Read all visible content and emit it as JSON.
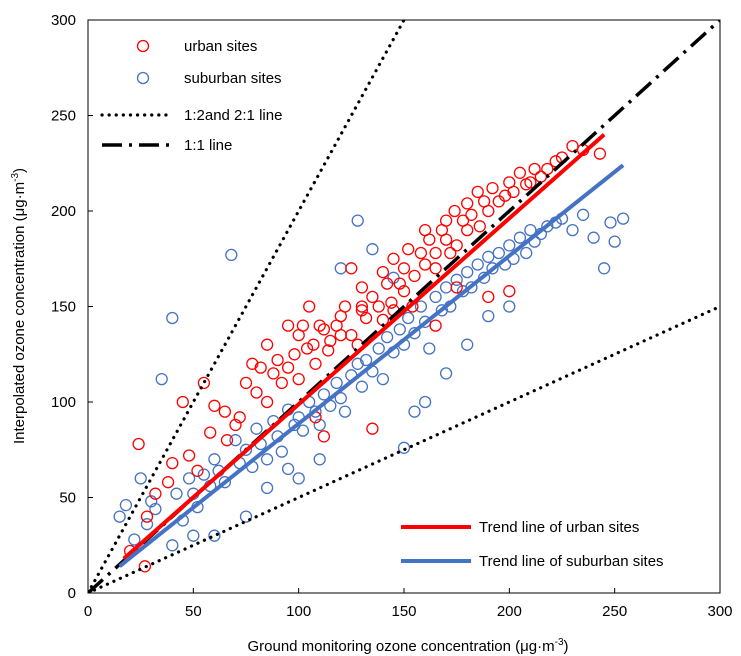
{
  "chart_data": {
    "type": "scatter",
    "xlabel": "Ground monitoring ozone concentration (μg·m",
    "xlabel_sup": "-3",
    "xlabel_tail": ")",
    "ylabel": "Interpolated ozone concentration (μg·m",
    "ylabel_sup": "-3",
    "ylabel_tail": ")",
    "xlim": [
      0,
      300
    ],
    "ylim": [
      0,
      300
    ],
    "xticks": [
      "0",
      "50",
      "100",
      "150",
      "200",
      "250",
      "300"
    ],
    "yticks": [
      "0",
      "50",
      "100",
      "150",
      "200",
      "250",
      "300"
    ],
    "grid": false,
    "series": [
      {
        "name": "urban sites",
        "color": "#ff0000",
        "marker": "open-circle",
        "sample_points": [
          [
            20,
            22
          ],
          [
            24,
            78
          ],
          [
            27,
            14
          ],
          [
            28,
            40
          ],
          [
            32,
            52
          ],
          [
            38,
            58
          ],
          [
            40,
            68
          ],
          [
            45,
            100
          ],
          [
            48,
            72
          ],
          [
            52,
            64
          ],
          [
            55,
            110
          ],
          [
            58,
            84
          ],
          [
            60,
            98
          ],
          [
            65,
            95
          ],
          [
            66,
            80
          ],
          [
            70,
            88
          ],
          [
            72,
            92
          ],
          [
            75,
            110
          ],
          [
            78,
            120
          ],
          [
            80,
            105
          ],
          [
            82,
            118
          ],
          [
            85,
            100
          ],
          [
            88,
            115
          ],
          [
            90,
            122
          ],
          [
            92,
            110
          ],
          [
            95,
            118
          ],
          [
            98,
            125
          ],
          [
            100,
            112
          ],
          [
            100,
            135
          ],
          [
            102,
            140
          ],
          [
            104,
            128
          ],
          [
            107,
            130
          ],
          [
            108,
            120
          ],
          [
            110,
            140
          ],
          [
            112,
            138
          ],
          [
            114,
            127
          ],
          [
            115,
            132
          ],
          [
            118,
            140
          ],
          [
            120,
            145
          ],
          [
            120,
            135
          ],
          [
            122,
            150
          ],
          [
            125,
            135
          ],
          [
            128,
            130
          ],
          [
            130,
            148
          ],
          [
            130,
            160
          ],
          [
            132,
            144
          ],
          [
            135,
            155
          ],
          [
            138,
            150
          ],
          [
            140,
            143
          ],
          [
            140,
            168
          ],
          [
            142,
            162
          ],
          [
            144,
            152
          ],
          [
            145,
            148
          ],
          [
            145,
            175
          ],
          [
            148,
            162
          ],
          [
            150,
            170
          ],
          [
            150,
            158
          ],
          [
            152,
            180
          ],
          [
            154,
            150
          ],
          [
            155,
            166
          ],
          [
            158,
            178
          ],
          [
            160,
            172
          ],
          [
            160,
            190
          ],
          [
            162,
            185
          ],
          [
            165,
            178
          ],
          [
            165,
            170
          ],
          [
            168,
            190
          ],
          [
            170,
            185
          ],
          [
            170,
            195
          ],
          [
            172,
            178
          ],
          [
            174,
            200
          ],
          [
            175,
            182
          ],
          [
            178,
            195
          ],
          [
            180,
            190
          ],
          [
            180,
            204
          ],
          [
            182,
            198
          ],
          [
            185,
            210
          ],
          [
            186,
            192
          ],
          [
            188,
            205
          ],
          [
            190,
            200
          ],
          [
            192,
            212
          ],
          [
            195,
            205
          ],
          [
            198,
            208
          ],
          [
            200,
            215
          ],
          [
            202,
            210
          ],
          [
            205,
            220
          ],
          [
            208,
            214
          ],
          [
            210,
            215
          ],
          [
            212,
            222
          ],
          [
            215,
            218
          ],
          [
            218,
            222
          ],
          [
            222,
            226
          ],
          [
            225,
            228
          ],
          [
            230,
            234
          ],
          [
            235,
            232
          ],
          [
            243,
            230
          ],
          [
            112,
            82
          ],
          [
            108,
            92
          ],
          [
            165,
            140
          ],
          [
            175,
            160
          ],
          [
            190,
            155
          ],
          [
            200,
            158
          ],
          [
            135,
            86
          ],
          [
            130,
            150
          ],
          [
            125,
            170
          ],
          [
            105,
            150
          ],
          [
            95,
            140
          ],
          [
            85,
            130
          ]
        ]
      },
      {
        "name": "suburban sites",
        "color": "#4472c4",
        "marker": "open-circle",
        "sample_points": [
          [
            15,
            40
          ],
          [
            18,
            46
          ],
          [
            22,
            28
          ],
          [
            25,
            60
          ],
          [
            28,
            36
          ],
          [
            30,
            48
          ],
          [
            32,
            44
          ],
          [
            35,
            112
          ],
          [
            40,
            144
          ],
          [
            42,
            52
          ],
          [
            45,
            38
          ],
          [
            48,
            60
          ],
          [
            50,
            52
          ],
          [
            52,
            45
          ],
          [
            55,
            62
          ],
          [
            58,
            56
          ],
          [
            60,
            70
          ],
          [
            62,
            64
          ],
          [
            65,
            58
          ],
          [
            68,
            177
          ],
          [
            70,
            80
          ],
          [
            72,
            68
          ],
          [
            75,
            75
          ],
          [
            78,
            66
          ],
          [
            80,
            86
          ],
          [
            82,
            78
          ],
          [
            85,
            70
          ],
          [
            88,
            90
          ],
          [
            90,
            82
          ],
          [
            92,
            74
          ],
          [
            95,
            96
          ],
          [
            98,
            88
          ],
          [
            100,
            92
          ],
          [
            102,
            85
          ],
          [
            105,
            100
          ],
          [
            108,
            95
          ],
          [
            110,
            88
          ],
          [
            112,
            104
          ],
          [
            115,
            98
          ],
          [
            118,
            110
          ],
          [
            120,
            102
          ],
          [
            122,
            95
          ],
          [
            125,
            114
          ],
          [
            128,
            195
          ],
          [
            128,
            120
          ],
          [
            130,
            108
          ],
          [
            132,
            122
          ],
          [
            135,
            116
          ],
          [
            138,
            128
          ],
          [
            140,
            112
          ],
          [
            142,
            134
          ],
          [
            145,
            126
          ],
          [
            148,
            138
          ],
          [
            150,
            130
          ],
          [
            150,
            76
          ],
          [
            152,
            144
          ],
          [
            155,
            136
          ],
          [
            158,
            150
          ],
          [
            160,
            142
          ],
          [
            162,
            128
          ],
          [
            165,
            155
          ],
          [
            168,
            148
          ],
          [
            170,
            160
          ],
          [
            172,
            150
          ],
          [
            175,
            164
          ],
          [
            178,
            158
          ],
          [
            180,
            168
          ],
          [
            182,
            160
          ],
          [
            185,
            172
          ],
          [
            188,
            165
          ],
          [
            190,
            176
          ],
          [
            192,
            170
          ],
          [
            195,
            178
          ],
          [
            198,
            172
          ],
          [
            200,
            182
          ],
          [
            202,
            175
          ],
          [
            205,
            186
          ],
          [
            208,
            178
          ],
          [
            210,
            190
          ],
          [
            212,
            184
          ],
          [
            215,
            188
          ],
          [
            218,
            192
          ],
          [
            222,
            194
          ],
          [
            225,
            196
          ],
          [
            230,
            190
          ],
          [
            235,
            198
          ],
          [
            240,
            186
          ],
          [
            245,
            170
          ],
          [
            248,
            194
          ],
          [
            250,
            184
          ],
          [
            254,
            196
          ],
          [
            120,
            170
          ],
          [
            135,
            180
          ],
          [
            145,
            165
          ],
          [
            100,
            60
          ],
          [
            110,
            70
          ],
          [
            160,
            100
          ],
          [
            170,
            115
          ],
          [
            180,
            130
          ],
          [
            190,
            145
          ],
          [
            200,
            150
          ],
          [
            60,
            30
          ],
          [
            75,
            40
          ],
          [
            85,
            55
          ],
          [
            50,
            30
          ],
          [
            40,
            25
          ],
          [
            95,
            65
          ],
          [
            155,
            95
          ]
        ]
      }
    ],
    "reference_lines": [
      {
        "name": "1:2and 2:1 line",
        "style": "dotted",
        "color": "#000000",
        "segments": [
          [
            [
              0,
              0
            ],
            [
              150,
              300
            ]
          ],
          [
            [
              0,
              0
            ],
            [
              300,
              150
            ]
          ]
        ]
      },
      {
        "name": "1:1 line",
        "style": "dash-dot",
        "color": "#000000",
        "segments": [
          [
            [
              0,
              0
            ],
            [
              300,
              300
            ]
          ]
        ]
      }
    ],
    "trend_lines": [
      {
        "name": "Trend line of urban sites",
        "color": "#ff0000",
        "from": [
          17,
          18
        ],
        "to": [
          245,
          240
        ]
      },
      {
        "name": "Trend line of suburban sites",
        "color": "#4472c4",
        "from": [
          15,
          14
        ],
        "to": [
          254,
          224
        ]
      }
    ],
    "legend_upper_left": [
      "urban sites",
      "suburban sites",
      "1:2and 2:1 line",
      "1:1 line"
    ],
    "legend_lower_right": [
      "Trend line of urban sites",
      "Trend line of suburban sites"
    ]
  }
}
